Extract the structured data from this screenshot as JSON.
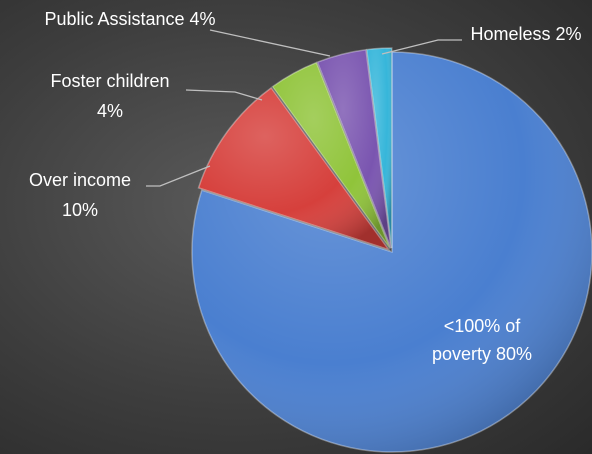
{
  "chart_data": {
    "type": "pie",
    "title": "",
    "slices": [
      {
        "name": "<100% of poverty",
        "value": 80,
        "label": [
          "<100% of",
          "poverty 80%"
        ],
        "color": "#4a7fd0"
      },
      {
        "name": "Over income",
        "value": 10,
        "label": [
          "Over income",
          "10%"
        ],
        "color": "#d6403c"
      },
      {
        "name": "Foster children",
        "value": 4,
        "label": [
          "Foster children",
          "4%"
        ],
        "color": "#90c43a"
      },
      {
        "name": "Public Assistance",
        "value": 4,
        "label": [
          "Public Assistance 4%"
        ],
        "color": "#7a55b0"
      },
      {
        "name": "Homeless",
        "value": 2,
        "label": [
          "Homeless 2%"
        ],
        "color": "#36b6da"
      }
    ],
    "legend": "none"
  }
}
